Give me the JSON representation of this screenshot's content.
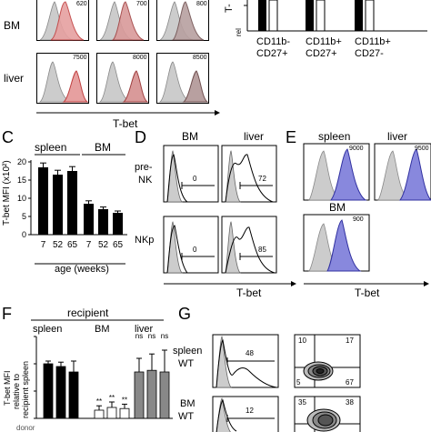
{
  "panelA": {
    "rows": [
      "BM",
      "liver"
    ],
    "values_bm": [
      "620",
      "700",
      "800"
    ],
    "values_liver": [
      "7500",
      "8000",
      "8500"
    ],
    "xlabel": "T-bet"
  },
  "panelB": {
    "ylabel_fragment": "T-",
    "ylabel_fragment2": "rel",
    "categories": [
      "CD11b-\nCD27+",
      "CD11b+\nCD27+",
      "CD11b+\nCD27-"
    ],
    "cat1a": "CD11b-",
    "cat1b": "CD27+",
    "cat2a": "CD11b+",
    "cat2b": "CD27+",
    "cat3a": "CD11b+",
    "cat3b": "CD27-"
  },
  "panelC": {
    "letter": "C",
    "group_spleen": "spleen",
    "group_bm": "BM",
    "ylabel": "T-bet MFI (x10²)",
    "xlabel": "age (weeks)",
    "yticks": [
      "0",
      "5",
      "10",
      "15",
      "20"
    ],
    "chart_data": {
      "type": "bar",
      "categories": [
        "7",
        "52",
        "65",
        "7",
        "52",
        "65"
      ],
      "groups": [
        "spleen",
        "spleen",
        "spleen",
        "BM",
        "BM",
        "BM"
      ],
      "values": [
        18.5,
        16.5,
        17.5,
        8.5,
        7.0,
        6.0
      ],
      "errors": [
        1.2,
        1.2,
        1.2,
        0.8,
        0.6,
        0.5
      ],
      "ylim": [
        0,
        20
      ],
      "ylabel": "T-bet MFI (x10²)",
      "xlabel": "age (weeks)"
    }
  },
  "panelD": {
    "letter": "D",
    "col_bm": "BM",
    "col_liver": "liver",
    "row1a": "pre-",
    "row1b": "NK",
    "row2": "NKp",
    "gate_pre_bm": "0",
    "gate_pre_liver": "72",
    "gate_nkp_bm": "0",
    "gate_nkp_liver": "85",
    "xlabel": "T-bet"
  },
  "panelE": {
    "letter": "E",
    "col_spleen": "spleen",
    "col_liver": "liver",
    "bm": "BM",
    "val_spleen": "9000",
    "val_liver": "9500",
    "val_bm": "900",
    "xlabel": "T-bet"
  },
  "panelF": {
    "letter": "F",
    "recipient": "recipient",
    "group_spleen": "spleen",
    "group_bm": "BM",
    "group_liver": "liver",
    "ylabel1": "T-bet MFI",
    "ylabel2": "relative to",
    "ylabel3": "recipient spleen",
    "stars": [
      "**",
      "**",
      "**"
    ],
    "ns": [
      "ns",
      "ns",
      "ns"
    ],
    "yticks": [
      "0",
      "50",
      "100",
      "150"
    ],
    "xcut": "donor",
    "chart_data": {
      "type": "bar",
      "categories": [
        "spleen",
        "spleen",
        "spleen",
        "BM",
        "BM",
        "BM",
        "liver",
        "liver",
        "liver"
      ],
      "values": [
        100,
        95,
        85,
        15,
        20,
        18,
        85,
        88,
        85
      ],
      "errors": [
        5,
        8,
        20,
        8,
        10,
        8,
        25,
        30,
        40
      ],
      "colors": [
        "#000000",
        "#000000",
        "#000000",
        "#ffffff",
        "#ffffff",
        "#ffffff",
        "#888888",
        "#888888",
        "#888888"
      ],
      "ylim": [
        0,
        150
      ]
    }
  },
  "panelG": {
    "letter": "G",
    "row1a": "spleen",
    "row1b": "WT",
    "row2a": "BM",
    "row2b": "WT",
    "gate1": "48",
    "gate2": "12",
    "q1_tl": "10",
    "q1_tr": "17",
    "q1_bl": "5",
    "q1_br": "67",
    "q2_tl": "35",
    "q2_tr": "38"
  },
  "colors": {
    "pink": "#e6a0a0",
    "pink_line": "#c04040",
    "blue": "#8888dd",
    "blue_line": "#3030a0",
    "grey_fill": "#cccccc",
    "grey_bar": "#888888"
  }
}
